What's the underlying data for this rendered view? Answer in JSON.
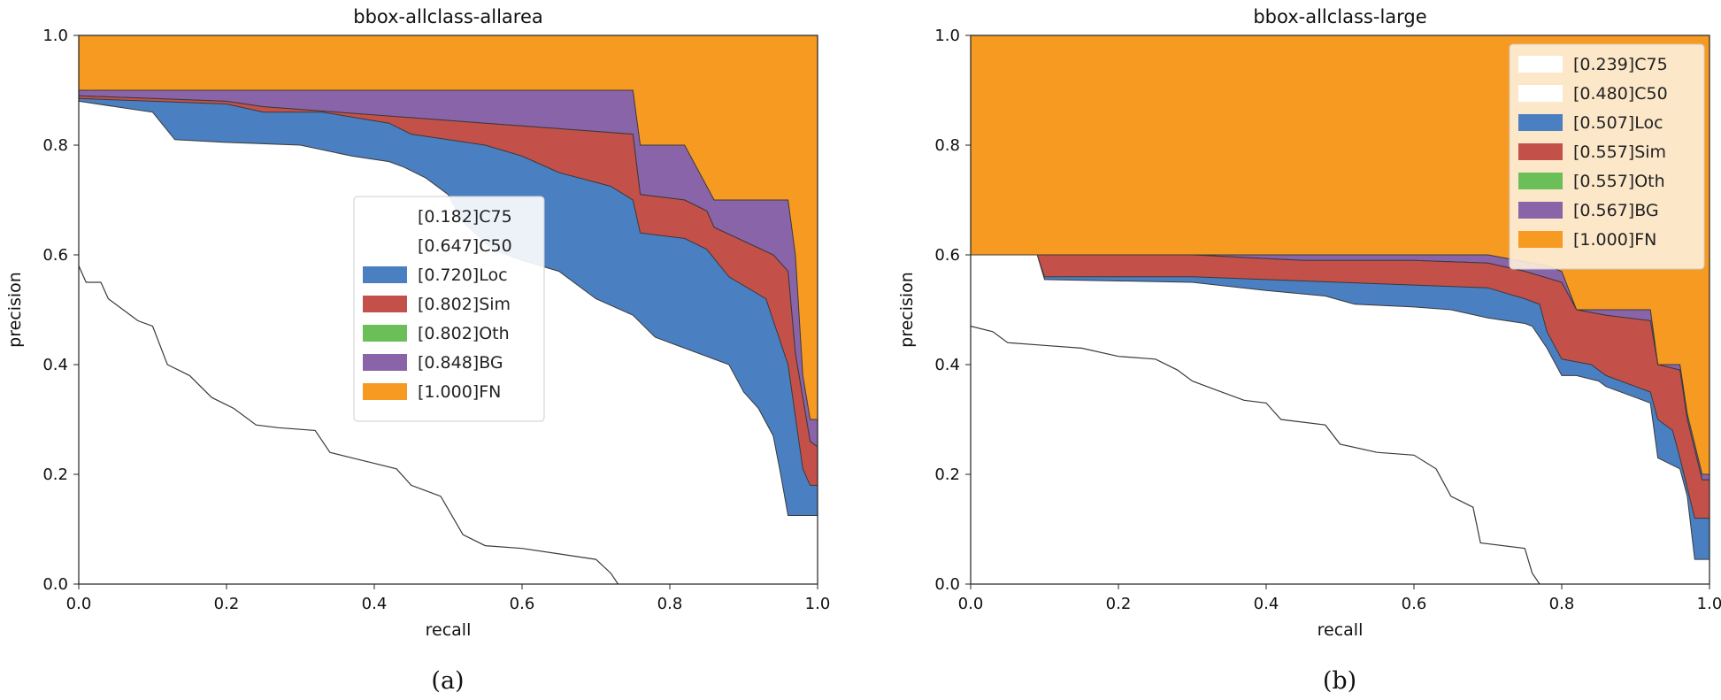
{
  "colors": {
    "C75": "#ffffff",
    "C50": "#ffffff",
    "Loc": "#4a7fc1",
    "Sim": "#c4504a",
    "Oth": "#6bbf59",
    "BG": "#8a64a9",
    "FN": "#f69a22"
  },
  "chart_data": [
    {
      "type": "area",
      "title": "bbox-allclass-allarea",
      "xlabel": "recall",
      "ylabel": "precision",
      "caption": "(a)",
      "xlim": [
        0,
        1
      ],
      "ylim": [
        0,
        1
      ],
      "xticks": [
        "0.0",
        "0.2",
        "0.4",
        "0.6",
        "0.8",
        "1.0"
      ],
      "yticks": [
        "0.0",
        "0.2",
        "0.4",
        "0.6",
        "0.8",
        "1.0"
      ],
      "legend_position": "center",
      "legend": [
        "[0.182]C75",
        "[0.647]C50",
        "[0.720]Loc",
        "[0.802]Sim",
        "[0.802]Oth",
        "[0.848]BG",
        "[1.000]FN"
      ],
      "series": [
        {
          "key": "C75",
          "name": "[0.182]C75",
          "values": [
            [
              0,
              0.58
            ],
            [
              0.01,
              0.55
            ],
            [
              0.03,
              0.55
            ],
            [
              0.04,
              0.52
            ],
            [
              0.08,
              0.48
            ],
            [
              0.1,
              0.47
            ],
            [
              0.12,
              0.4
            ],
            [
              0.15,
              0.38
            ],
            [
              0.18,
              0.34
            ],
            [
              0.21,
              0.32
            ],
            [
              0.24,
              0.29
            ],
            [
              0.27,
              0.285
            ],
            [
              0.32,
              0.28
            ],
            [
              0.34,
              0.24
            ],
            [
              0.37,
              0.23
            ],
            [
              0.4,
              0.22
            ],
            [
              0.43,
              0.21
            ],
            [
              0.45,
              0.18
            ],
            [
              0.47,
              0.17
            ],
            [
              0.49,
              0.16
            ],
            [
              0.52,
              0.09
            ],
            [
              0.55,
              0.07
            ],
            [
              0.6,
              0.065
            ],
            [
              0.65,
              0.055
            ],
            [
              0.7,
              0.045
            ],
            [
              0.72,
              0.02
            ],
            [
              0.73,
              0
            ]
          ]
        },
        {
          "key": "C50",
          "name": "[0.647]C50",
          "values": [
            [
              0,
              0.88
            ],
            [
              0.05,
              0.87
            ],
            [
              0.1,
              0.86
            ],
            [
              0.13,
              0.81
            ],
            [
              0.2,
              0.805
            ],
            [
              0.3,
              0.8
            ],
            [
              0.37,
              0.78
            ],
            [
              0.42,
              0.77
            ],
            [
              0.44,
              0.76
            ],
            [
              0.47,
              0.74
            ],
            [
              0.5,
              0.71
            ],
            [
              0.52,
              0.66
            ],
            [
              0.56,
              0.61
            ],
            [
              0.6,
              0.59
            ],
            [
              0.65,
              0.57
            ],
            [
              0.7,
              0.52
            ],
            [
              0.75,
              0.49
            ],
            [
              0.78,
              0.45
            ],
            [
              0.82,
              0.43
            ],
            [
              0.88,
              0.4
            ],
            [
              0.9,
              0.35
            ],
            [
              0.92,
              0.32
            ],
            [
              0.94,
              0.27
            ],
            [
              0.95,
              0.2
            ],
            [
              0.96,
              0.125
            ],
            [
              1,
              0.125
            ]
          ]
        },
        {
          "key": "Loc",
          "name": "[0.720]Loc",
          "values": [
            [
              0,
              0.885
            ],
            [
              0.1,
              0.88
            ],
            [
              0.2,
              0.875
            ],
            [
              0.25,
              0.86
            ],
            [
              0.33,
              0.86
            ],
            [
              0.42,
              0.84
            ],
            [
              0.45,
              0.82
            ],
            [
              0.55,
              0.8
            ],
            [
              0.6,
              0.78
            ],
            [
              0.65,
              0.75
            ],
            [
              0.72,
              0.725
            ],
            [
              0.75,
              0.7
            ],
            [
              0.76,
              0.64
            ],
            [
              0.82,
              0.63
            ],
            [
              0.85,
              0.61
            ],
            [
              0.88,
              0.56
            ],
            [
              0.93,
              0.52
            ],
            [
              0.96,
              0.4
            ],
            [
              0.98,
              0.21
            ],
            [
              0.99,
              0.18
            ],
            [
              1,
              0.18
            ]
          ]
        },
        {
          "key": "Sim",
          "name": "[0.802]Sim",
          "values": [
            [
              0,
              0.89
            ],
            [
              0.1,
              0.885
            ],
            [
              0.2,
              0.88
            ],
            [
              0.25,
              0.87
            ],
            [
              0.35,
              0.86
            ],
            [
              0.45,
              0.85
            ],
            [
              0.55,
              0.84
            ],
            [
              0.65,
              0.83
            ],
            [
              0.75,
              0.82
            ],
            [
              0.76,
              0.71
            ],
            [
              0.82,
              0.7
            ],
            [
              0.85,
              0.68
            ],
            [
              0.86,
              0.65
            ],
            [
              0.94,
              0.6
            ],
            [
              0.96,
              0.57
            ],
            [
              0.97,
              0.42
            ],
            [
              0.99,
              0.26
            ],
            [
              1,
              0.25
            ]
          ]
        },
        {
          "key": "Oth",
          "name": "[0.802]Oth",
          "values": [
            [
              0,
              0.89
            ],
            [
              0.1,
              0.885
            ],
            [
              0.2,
              0.88
            ],
            [
              0.25,
              0.87
            ],
            [
              0.35,
              0.86
            ],
            [
              0.45,
              0.85
            ],
            [
              0.55,
              0.84
            ],
            [
              0.65,
              0.83
            ],
            [
              0.75,
              0.82
            ],
            [
              0.76,
              0.71
            ],
            [
              0.82,
              0.7
            ],
            [
              0.85,
              0.68
            ],
            [
              0.86,
              0.65
            ],
            [
              0.94,
              0.6
            ],
            [
              0.96,
              0.57
            ],
            [
              0.97,
              0.42
            ],
            [
              0.99,
              0.26
            ],
            [
              1,
              0.25
            ]
          ]
        },
        {
          "key": "BG",
          "name": "[0.848]BG",
          "values": [
            [
              0,
              0.9
            ],
            [
              0.75,
              0.9
            ],
            [
              0.76,
              0.8
            ],
            [
              0.81,
              0.8
            ],
            [
              0.82,
              0.8
            ],
            [
              0.86,
              0.7
            ],
            [
              0.96,
              0.7
            ],
            [
              0.97,
              0.6
            ],
            [
              0.98,
              0.38
            ],
            [
              0.99,
              0.3
            ],
            [
              1,
              0.3
            ]
          ]
        },
        {
          "key": "FN",
          "name": "[1.000]FN",
          "values": [
            [
              0,
              1.0
            ],
            [
              1,
              1.0
            ]
          ]
        }
      ]
    },
    {
      "type": "area",
      "title": "bbox-allclass-large",
      "xlabel": "recall",
      "ylabel": "precision",
      "caption": "(b)",
      "xlim": [
        0,
        1
      ],
      "ylim": [
        0,
        1
      ],
      "xticks": [
        "0.0",
        "0.2",
        "0.4",
        "0.6",
        "0.8",
        "1.0"
      ],
      "yticks": [
        "0.0",
        "0.2",
        "0.4",
        "0.6",
        "0.8",
        "1.0"
      ],
      "legend_position": "top-right",
      "legend": [
        "[0.239]C75",
        "[0.480]C50",
        "[0.507]Loc",
        "[0.557]Sim",
        "[0.557]Oth",
        "[0.567]BG",
        "[1.000]FN"
      ],
      "series": [
        {
          "key": "C75",
          "name": "[0.239]C75",
          "values": [
            [
              0,
              0.47
            ],
            [
              0.03,
              0.46
            ],
            [
              0.05,
              0.44
            ],
            [
              0.1,
              0.435
            ],
            [
              0.15,
              0.43
            ],
            [
              0.2,
              0.415
            ],
            [
              0.25,
              0.41
            ],
            [
              0.28,
              0.39
            ],
            [
              0.3,
              0.37
            ],
            [
              0.33,
              0.355
            ],
            [
              0.37,
              0.335
            ],
            [
              0.4,
              0.33
            ],
            [
              0.42,
              0.3
            ],
            [
              0.48,
              0.29
            ],
            [
              0.5,
              0.255
            ],
            [
              0.55,
              0.24
            ],
            [
              0.6,
              0.235
            ],
            [
              0.63,
              0.21
            ],
            [
              0.65,
              0.16
            ],
            [
              0.68,
              0.14
            ],
            [
              0.69,
              0.075
            ],
            [
              0.75,
              0.065
            ],
            [
              0.76,
              0.02
            ],
            [
              0.77,
              0
            ]
          ]
        },
        {
          "key": "C50",
          "name": "[0.480]C50",
          "values": [
            [
              0,
              0.6
            ],
            [
              0.09,
              0.6
            ],
            [
              0.1,
              0.555
            ],
            [
              0.3,
              0.55
            ],
            [
              0.4,
              0.535
            ],
            [
              0.48,
              0.525
            ],
            [
              0.52,
              0.51
            ],
            [
              0.6,
              0.505
            ],
            [
              0.65,
              0.5
            ],
            [
              0.7,
              0.485
            ],
            [
              0.75,
              0.475
            ],
            [
              0.76,
              0.47
            ],
            [
              0.78,
              0.43
            ],
            [
              0.8,
              0.38
            ],
            [
              0.82,
              0.38
            ],
            [
              0.85,
              0.37
            ],
            [
              0.86,
              0.36
            ],
            [
              0.9,
              0.34
            ],
            [
              0.92,
              0.33
            ],
            [
              0.93,
              0.23
            ],
            [
              0.96,
              0.21
            ],
            [
              0.97,
              0.16
            ],
            [
              0.98,
              0.045
            ],
            [
              1,
              0.045
            ]
          ]
        },
        {
          "key": "Loc",
          "name": "[0.507]Loc",
          "values": [
            [
              0,
              0.6
            ],
            [
              0.09,
              0.6
            ],
            [
              0.1,
              0.56
            ],
            [
              0.3,
              0.56
            ],
            [
              0.4,
              0.555
            ],
            [
              0.5,
              0.55
            ],
            [
              0.6,
              0.545
            ],
            [
              0.7,
              0.54
            ],
            [
              0.75,
              0.52
            ],
            [
              0.77,
              0.51
            ],
            [
              0.78,
              0.46
            ],
            [
              0.8,
              0.41
            ],
            [
              0.84,
              0.4
            ],
            [
              0.86,
              0.38
            ],
            [
              0.9,
              0.36
            ],
            [
              0.92,
              0.35
            ],
            [
              0.93,
              0.3
            ],
            [
              0.95,
              0.28
            ],
            [
              0.96,
              0.23
            ],
            [
              0.98,
              0.12
            ],
            [
              1,
              0.12
            ]
          ]
        },
        {
          "key": "Sim",
          "name": "[0.557]Sim",
          "values": [
            [
              0,
              0.6
            ],
            [
              0.3,
              0.6
            ],
            [
              0.45,
              0.59
            ],
            [
              0.6,
              0.59
            ],
            [
              0.7,
              0.585
            ],
            [
              0.75,
              0.57
            ],
            [
              0.8,
              0.55
            ],
            [
              0.82,
              0.5
            ],
            [
              0.86,
              0.49
            ],
            [
              0.92,
              0.48
            ],
            [
              0.93,
              0.4
            ],
            [
              0.96,
              0.39
            ],
            [
              0.97,
              0.3
            ],
            [
              0.99,
              0.19
            ],
            [
              1,
              0.19
            ]
          ]
        },
        {
          "key": "Oth",
          "name": "[0.557]Oth",
          "values": [
            [
              0,
              0.6
            ],
            [
              0.3,
              0.6
            ],
            [
              0.45,
              0.59
            ],
            [
              0.6,
              0.59
            ],
            [
              0.7,
              0.585
            ],
            [
              0.75,
              0.57
            ],
            [
              0.8,
              0.55
            ],
            [
              0.82,
              0.5
            ],
            [
              0.86,
              0.49
            ],
            [
              0.92,
              0.48
            ],
            [
              0.93,
              0.4
            ],
            [
              0.96,
              0.39
            ],
            [
              0.97,
              0.3
            ],
            [
              0.99,
              0.19
            ],
            [
              1,
              0.19
            ]
          ]
        },
        {
          "key": "BG",
          "name": "[0.567]BG",
          "values": [
            [
              0,
              0.6
            ],
            [
              0.45,
              0.6
            ],
            [
              0.6,
              0.6
            ],
            [
              0.7,
              0.6
            ],
            [
              0.78,
              0.58
            ],
            [
              0.8,
              0.57
            ],
            [
              0.82,
              0.5
            ],
            [
              0.92,
              0.5
            ],
            [
              0.93,
              0.4
            ],
            [
              0.96,
              0.4
            ],
            [
              0.97,
              0.31
            ],
            [
              0.99,
              0.2
            ],
            [
              1,
              0.2
            ]
          ]
        },
        {
          "key": "FN",
          "name": "[1.000]FN",
          "values": [
            [
              0,
              1.0
            ],
            [
              1,
              1.0
            ]
          ]
        }
      ]
    }
  ]
}
